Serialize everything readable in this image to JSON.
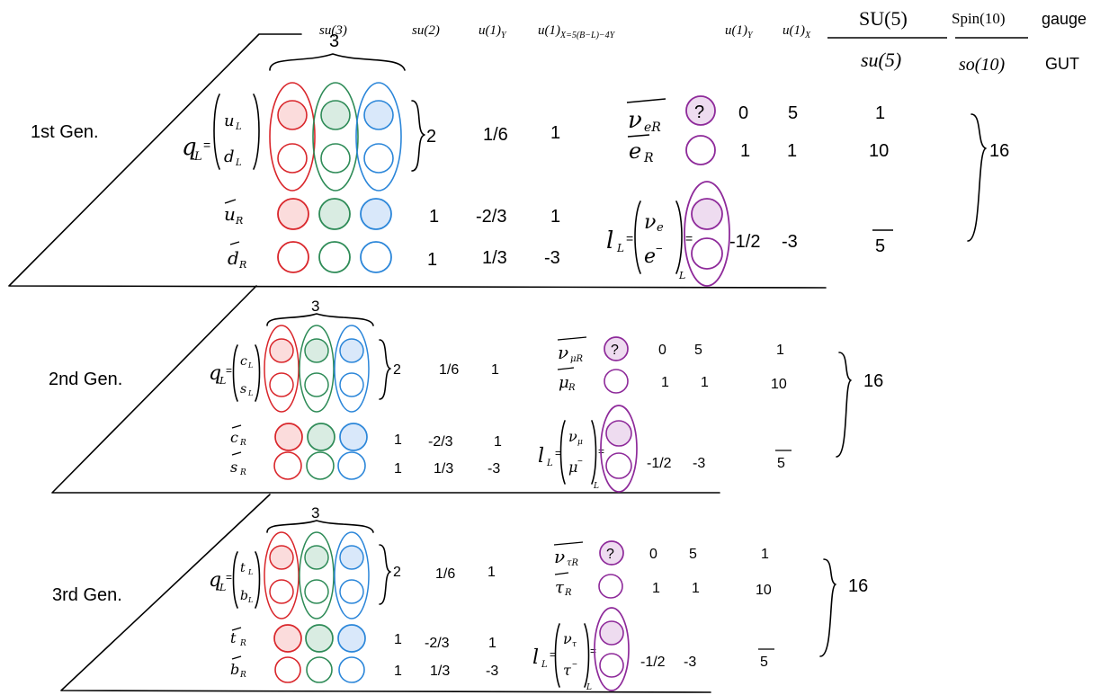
{
  "header": {
    "su3": "su(3)",
    "su2": "su(2)",
    "u1y": "u(1)",
    "u1y_sub": "Y",
    "u1x": "u(1)",
    "u1x_sub": "X=5(B−L)−4Y",
    "u1y_b": "u(1)",
    "u1y_b_sub": "Y",
    "u1x_b": "u(1)",
    "u1x_b_sub": "X",
    "su5_top": "SU(5)",
    "su5_bottom": "su(5)",
    "spin10_top": "Spin(10)",
    "spin10_bottom": "so(10)",
    "gauge": "gauge",
    "gut": "GUT"
  },
  "colors": {
    "red": "#d9262b",
    "green": "#2e8b57",
    "blue": "#2b86d9",
    "purple": "#8e2a9a",
    "red_fill": "#fbdcdc",
    "green_fill": "#d9ece2",
    "blue_fill": "#d9e8fa",
    "purple_fill": "#eedcf0"
  },
  "generations": [
    {
      "label": "1st Gen.",
      "color_multiplicity": "3",
      "quark_doublet": {
        "name": "q",
        "sub": "L",
        "up": "u",
        "up_sub": "L",
        "down": "d",
        "down_sub": "L"
      },
      "quark_doublet_values": {
        "su2": "2",
        "y": "1/6",
        "x": "1"
      },
      "up_singlet": {
        "name": "u",
        "sub": "R",
        "su2": "1",
        "y": "-2/3",
        "x": "1"
      },
      "down_singlet": {
        "name": "d",
        "sub": "R",
        "su2": "1",
        "y": "1/3",
        "x": "-3"
      },
      "neutrino_singlet": {
        "name": "ν",
        "sub": "eR",
        "mark": "?",
        "y": "0",
        "x": "5",
        "su5": "1"
      },
      "lepton_singlet": {
        "name": "e",
        "sub": "R",
        "y": "1",
        "x": "1",
        "su5": "10"
      },
      "lepton_doublet": {
        "name": "l",
        "sub": "L",
        "up": "ν",
        "up_sub": "e",
        "down": "e",
        "down_sup": "−",
        "outer_sub": "L",
        "y": "-1/2",
        "x": "-3",
        "su5": "5"
      },
      "so10": "16"
    },
    {
      "label": "2nd Gen.",
      "color_multiplicity": "3",
      "quark_doublet": {
        "name": "q",
        "sub": "L",
        "up": "c",
        "up_sub": "L",
        "down": "s",
        "down_sub": "L"
      },
      "quark_doublet_values": {
        "su2": "2",
        "y": "1/6",
        "x": "1"
      },
      "up_singlet": {
        "name": "c",
        "sub": "R",
        "su2": "1",
        "y": "-2/3",
        "x": "1"
      },
      "down_singlet": {
        "name": "s",
        "sub": "R",
        "su2": "1",
        "y": "1/3",
        "x": "-3"
      },
      "neutrino_singlet": {
        "name": "ν",
        "sub": "μR",
        "mark": "?",
        "y": "0",
        "x": "5",
        "su5": "1"
      },
      "lepton_singlet": {
        "name": "μ",
        "sub": "R",
        "y": "1",
        "x": "1",
        "su5": "10"
      },
      "lepton_doublet": {
        "name": "l",
        "sub": "L",
        "up": "ν",
        "up_sub": "μ",
        "down": "μ",
        "down_sup": "−",
        "outer_sub": "L",
        "y": "-1/2",
        "x": "-3",
        "su5": "5"
      },
      "so10": "16"
    },
    {
      "label": "3rd Gen.",
      "color_multiplicity": "3",
      "quark_doublet": {
        "name": "q",
        "sub": "L",
        "up": "t",
        "up_sub": "L",
        "down": "b",
        "down_sub": "L"
      },
      "quark_doublet_values": {
        "su2": "2",
        "y": "1/6",
        "x": "1"
      },
      "up_singlet": {
        "name": "t",
        "sub": "R",
        "su2": "1",
        "y": "-2/3",
        "x": "1"
      },
      "down_singlet": {
        "name": "b",
        "sub": "R",
        "su2": "1",
        "y": "1/3",
        "x": "-3"
      },
      "neutrino_singlet": {
        "name": "ν",
        "sub": "τR",
        "mark": "?",
        "y": "0",
        "x": "5",
        "su5": "1"
      },
      "lepton_singlet": {
        "name": "τ",
        "sub": "R",
        "y": "1",
        "x": "1",
        "su5": "10"
      },
      "lepton_doublet": {
        "name": "l",
        "sub": "L",
        "up": "ν",
        "up_sub": "τ",
        "down": "τ",
        "down_sup": "−",
        "outer_sub": "L",
        "y": "-1/2",
        "x": "-3",
        "su5": "5"
      },
      "so10": "16"
    }
  ]
}
